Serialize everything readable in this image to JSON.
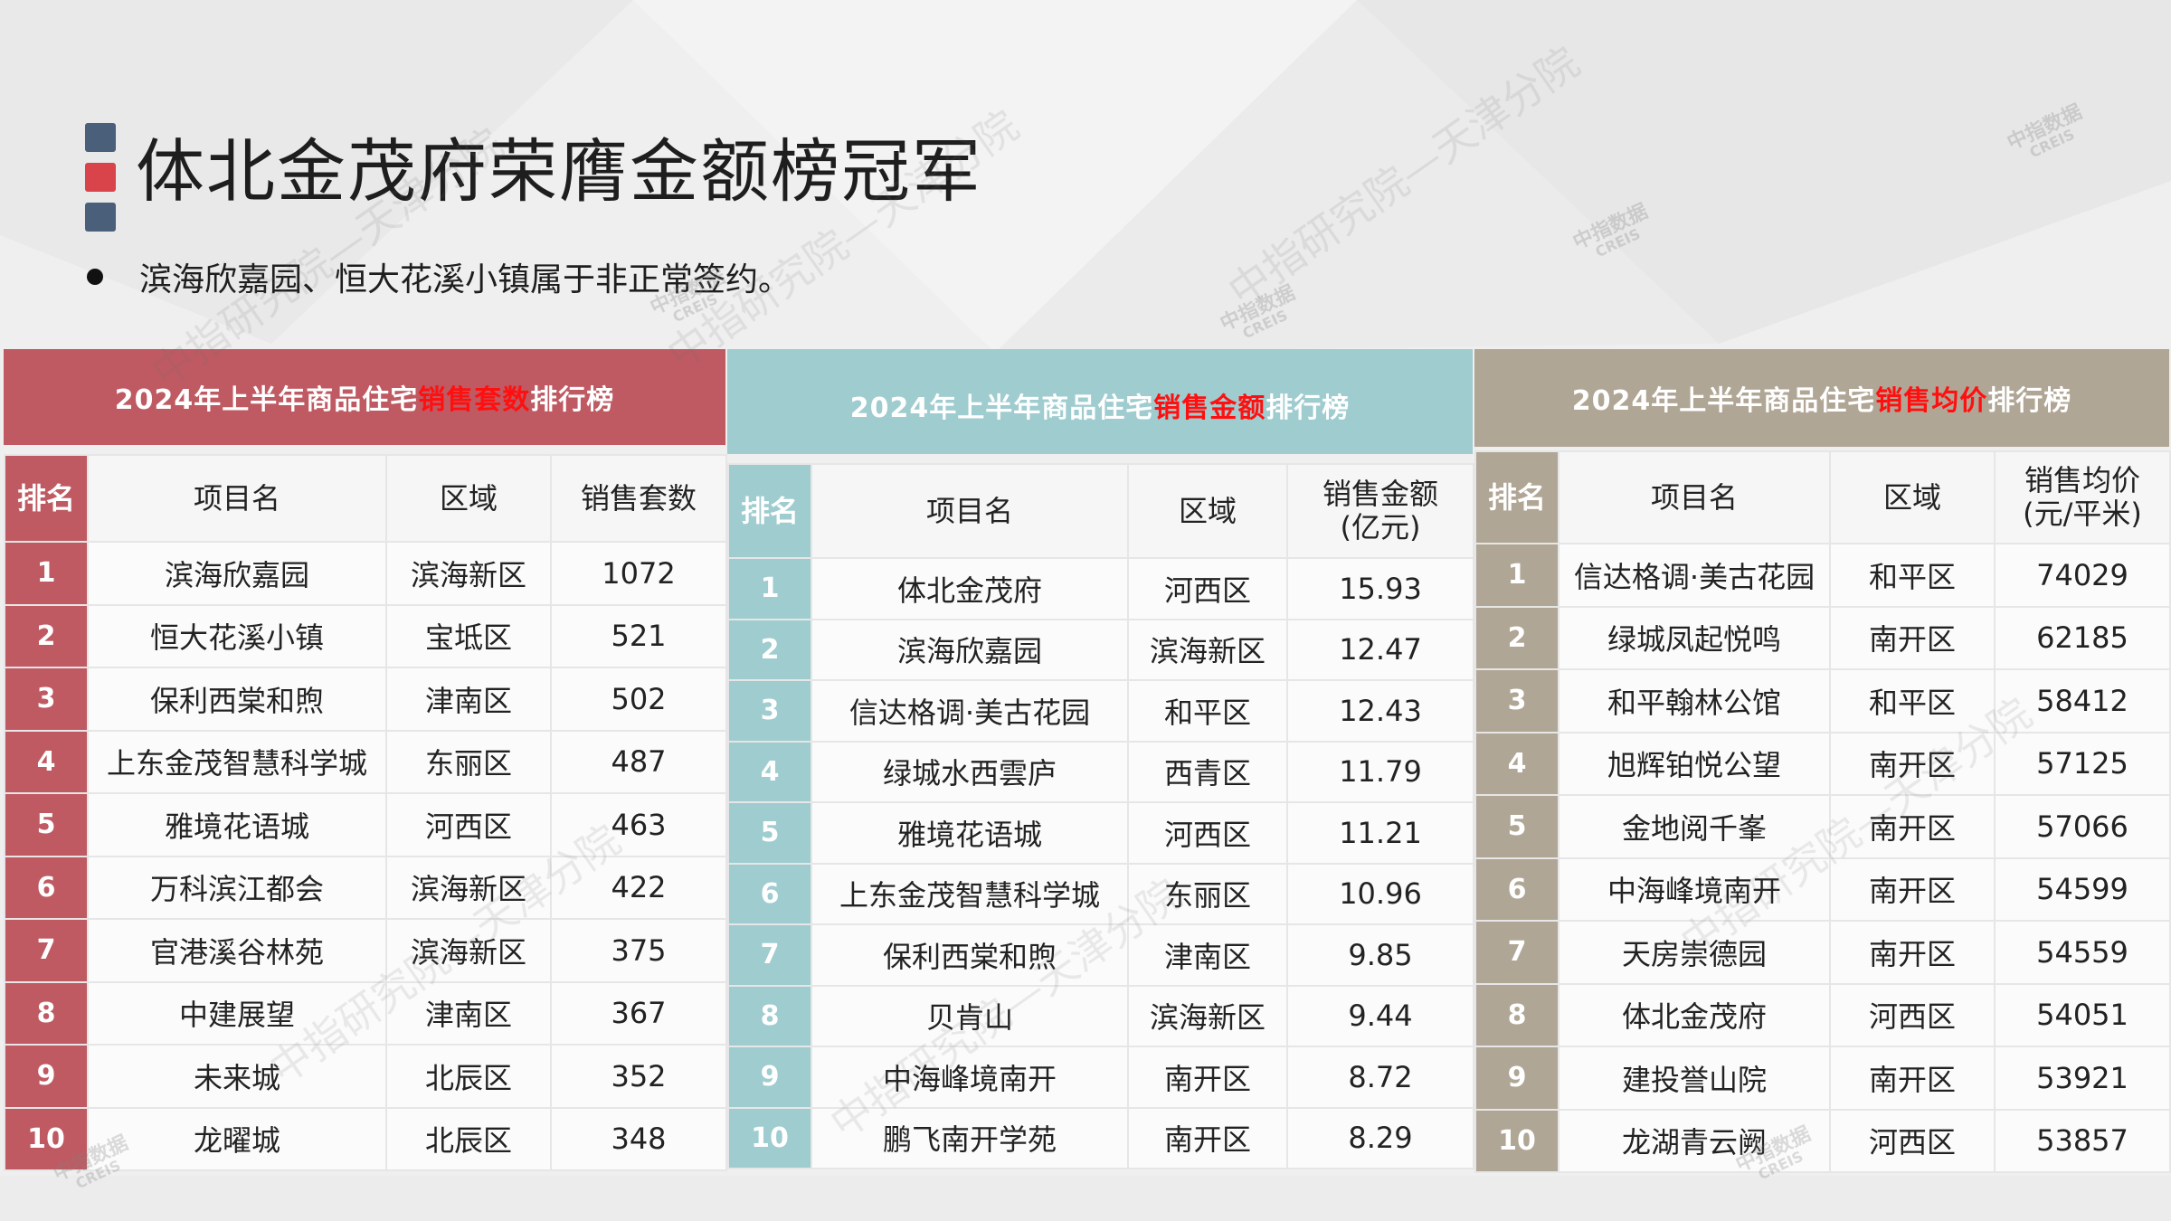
{
  "title": "体北金茂府荣膺金额榜冠军",
  "bullet": "滨海欣嘉园、恒大花溪小镇属于非正常签约。",
  "watermark": {
    "text": "中指研究院—天津分院",
    "logo_cn": "中指数据",
    "logo_en": "CREIS"
  },
  "colors": {
    "count_panel": "#bf5a62",
    "amount_panel": "#9fcccf",
    "price_panel": "#b0a695",
    "highlight": "#ff1010",
    "title_bar_navy": "#4a5f7a",
    "title_bar_red": "#d9434a"
  },
  "tables": {
    "count": {
      "header_prefix": "2024年上半年商品住宅",
      "header_highlight": "销售套数",
      "header_suffix": "排行榜",
      "columns": [
        "排名",
        "项目名",
        "区域",
        "销售套数"
      ],
      "rows": [
        [
          "1",
          "滨海欣嘉园",
          "滨海新区",
          "1072"
        ],
        [
          "2",
          "恒大花溪小镇",
          "宝坻区",
          "521"
        ],
        [
          "3",
          "保利西棠和煦",
          "津南区",
          "502"
        ],
        [
          "4",
          "上东金茂智慧科学城",
          "东丽区",
          "487"
        ],
        [
          "5",
          "雅境花语城",
          "河西区",
          "463"
        ],
        [
          "6",
          "万科滨江都会",
          "滨海新区",
          "422"
        ],
        [
          "7",
          "官港溪谷林苑",
          "滨海新区",
          "375"
        ],
        [
          "8",
          "中建展望",
          "津南区",
          "367"
        ],
        [
          "9",
          "未来城",
          "北辰区",
          "352"
        ],
        [
          "10",
          "龙曜城",
          "北辰区",
          "348"
        ]
      ]
    },
    "amount": {
      "header_prefix": "2024年上半年商品住宅",
      "header_highlight": "销售金额",
      "header_suffix": "排行榜",
      "columns": [
        "排名",
        "项目名",
        "区域",
        "销售金额",
        "(亿元)"
      ],
      "rows": [
        [
          "1",
          "体北金茂府",
          "河西区",
          "15.93"
        ],
        [
          "2",
          "滨海欣嘉园",
          "滨海新区",
          "12.47"
        ],
        [
          "3",
          "信达格调·美古花园",
          "和平区",
          "12.43"
        ],
        [
          "4",
          "绿城水西雲庐",
          "西青区",
          "11.79"
        ],
        [
          "5",
          "雅境花语城",
          "河西区",
          "11.21"
        ],
        [
          "6",
          "上东金茂智慧科学城",
          "东丽区",
          "10.96"
        ],
        [
          "7",
          "保利西棠和煦",
          "津南区",
          "9.85"
        ],
        [
          "8",
          "贝肯山",
          "滨海新区",
          "9.44"
        ],
        [
          "9",
          "中海峰境南开",
          "南开区",
          "8.72"
        ],
        [
          "10",
          "鹏飞南开学苑",
          "南开区",
          "8.29"
        ]
      ]
    },
    "price": {
      "header_prefix": "2024年上半年商品住宅",
      "header_highlight": "销售均价",
      "header_suffix": "排行榜",
      "columns": [
        "排名",
        "项目名",
        "区域",
        "销售均价",
        "(元/平米)"
      ],
      "rows": [
        [
          "1",
          "信达格调·美古花园",
          "和平区",
          "74029"
        ],
        [
          "2",
          "绿城凤起悦鸣",
          "南开区",
          "62185"
        ],
        [
          "3",
          "和平翰林公馆",
          "和平区",
          "58412"
        ],
        [
          "4",
          "旭辉铂悦公望",
          "南开区",
          "57125"
        ],
        [
          "5",
          "金地阅千峯",
          "南开区",
          "57066"
        ],
        [
          "6",
          "中海峰境南开",
          "南开区",
          "54599"
        ],
        [
          "7",
          "天房崇德园",
          "南开区",
          "54559"
        ],
        [
          "8",
          "体北金茂府",
          "河西区",
          "54051"
        ],
        [
          "9",
          "建投誉山院",
          "南开区",
          "53921"
        ],
        [
          "10",
          "龙湖青云阙",
          "河西区",
          "53857"
        ]
      ]
    }
  }
}
